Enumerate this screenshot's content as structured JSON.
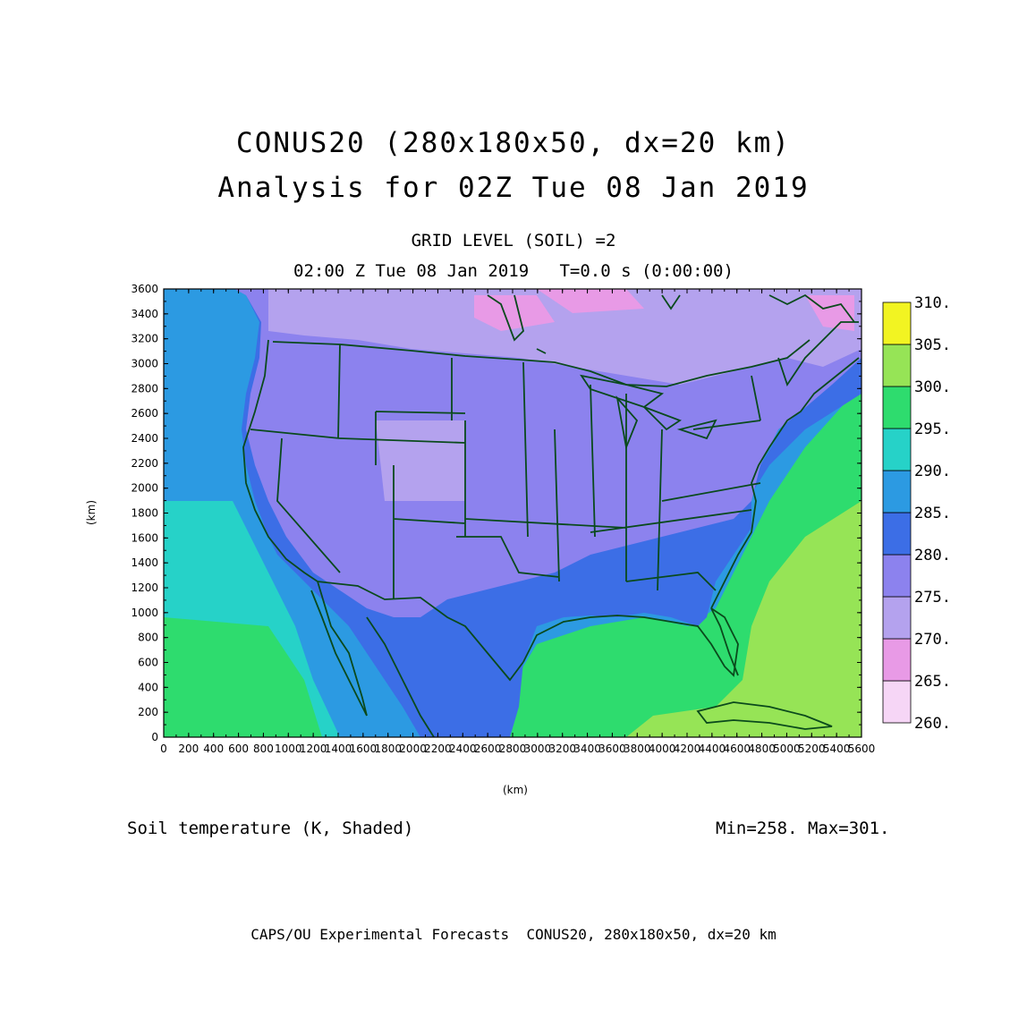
{
  "title": {
    "line1": "CONUS20 (280x180x50, dx=20 km)",
    "line2": "Analysis for 02Z Tue 08 Jan 2019"
  },
  "subtitle": {
    "level": "GRID LEVEL (SOIL) =2",
    "time": "02:00 Z Tue 08 Jan 2019   T=0.0 s (0:00:00)"
  },
  "field_label": "Soil temperature (K, Shaded)",
  "minmax": "Min=258. Max=301.",
  "footer": "CAPS/OU Experimental Forecasts  CONUS20, 280x180x50, dx=20 km",
  "axes": {
    "xlabel": "(km)",
    "ylabel": "(km)",
    "x_ticks": [
      "0",
      "200",
      "400",
      "600",
      "800",
      "1000",
      "1200",
      "1400",
      "1600",
      "1800",
      "2000",
      "2200",
      "2400",
      "2600",
      "2800",
      "3000",
      "3200",
      "3400",
      "3600",
      "3800",
      "4000",
      "4200",
      "4400",
      "4600",
      "4800",
      "5000",
      "5200",
      "5400",
      "5600"
    ],
    "y_ticks": [
      "0",
      "200",
      "400",
      "600",
      "800",
      "1000",
      "1200",
      "1400",
      "1600",
      "1800",
      "2000",
      "2200",
      "2400",
      "2600",
      "2800",
      "3000",
      "3200",
      "3400",
      "3600"
    ],
    "xlim": [
      0,
      5600
    ],
    "ylim": [
      0,
      3600
    ]
  },
  "colorbar": {
    "labels": [
      "260.",
      "265.",
      "270.",
      "275.",
      "280.",
      "285.",
      "290.",
      "295.",
      "300.",
      "305.",
      "310."
    ],
    "colors": [
      "#f6d6f6",
      "#e89ae6",
      "#b4a2ee",
      "#9a8cf2",
      "#7a74e4",
      "#3c6ee6",
      "#2c9ae2",
      "#26d2c8",
      "#2edc6e",
      "#60e050",
      "#96e456",
      "#d4ee5c",
      "#f2f422",
      "#f8f860"
    ],
    "bands": [
      {
        "lo": 260,
        "hi": 265,
        "color": "#f6d6f6"
      },
      {
        "lo": 265,
        "hi": 270,
        "color": "#e89ae6"
      },
      {
        "lo": 270,
        "hi": 275,
        "color": "#b4a2ee"
      },
      {
        "lo": 275,
        "hi": 280,
        "color": "#8c82ee"
      },
      {
        "lo": 280,
        "hi": 285,
        "color": "#3c6ee6"
      },
      {
        "lo": 285,
        "hi": 290,
        "color": "#2c9ae2"
      },
      {
        "lo": 290,
        "hi": 295,
        "color": "#26d2c8"
      },
      {
        "lo": 295,
        "hi": 300,
        "color": "#2edc6e"
      },
      {
        "lo": 300,
        "hi": 305,
        "color": "#96e456"
      },
      {
        "lo": 305,
        "hi": 310,
        "color": "#f2f422"
      }
    ]
  },
  "map_colors": {
    "pacific": "#2c9ae2",
    "pacific_south": "#26d2c8",
    "gulf": "#2edc6e",
    "atlantic": "#2edc6e",
    "caribbean": "#96e456",
    "land_west": "#8c82ee",
    "land_north": "#b4a2ee",
    "land_south": "#3c6ee6",
    "canada": "#b4a2ee",
    "cold_spots": "#e89ae6",
    "borders": "#0a4a1c"
  }
}
